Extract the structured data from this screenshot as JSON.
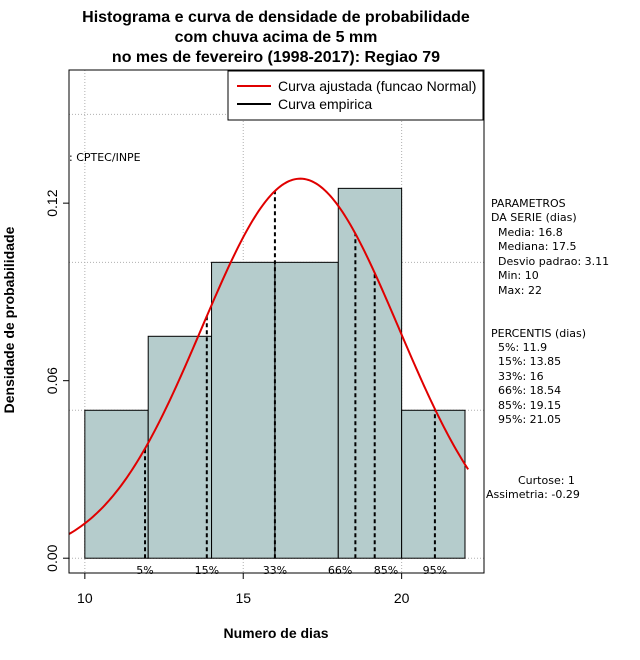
{
  "chart_data": {
    "type": "bar",
    "title_lines": [
      "Histograma e curva de densidade de probabilidade",
      "com chuva acima de 5 mm",
      "no mes de fevereiro (1998-2017): Regiao 79"
    ],
    "xlabel": "Numero de dias",
    "ylabel": "Densidade de probabilidade",
    "xlim": [
      9.5,
      22.6
    ],
    "ylim": [
      -0.005,
      0.165
    ],
    "x_ticks": [
      10,
      15,
      20
    ],
    "y_ticks": [
      0.0,
      0.06,
      0.12
    ],
    "y_tick_labels": [
      "0.00",
      "0.06",
      "0.12"
    ],
    "bins": [
      {
        "from": 10,
        "to": 12,
        "density": 0.05
      },
      {
        "from": 12,
        "to": 14,
        "density": 0.075
      },
      {
        "from": 14,
        "to": 16,
        "density": 0.1
      },
      {
        "from": 16,
        "to": 18,
        "density": 0.1
      },
      {
        "from": 18,
        "to": 20,
        "density": 0.125
      },
      {
        "from": 20,
        "to": 22,
        "density": 0.05
      }
    ],
    "normal_curve": {
      "mean": 16.8,
      "sd": 3.11
    },
    "percentile_lines": [
      {
        "label": "5%",
        "x": 11.9
      },
      {
        "label": "15%",
        "x": 13.85
      },
      {
        "label": "33%",
        "x": 16.0
      },
      {
        "label": "66%",
        "x": 18.54
      },
      {
        "label": "85%",
        "x": 19.15
      },
      {
        "label": "95%",
        "x": 21.05
      }
    ],
    "legend": {
      "position": "top-right",
      "items": [
        {
          "label": "Curva ajustada (funcao Normal)",
          "color": "#e00000"
        },
        {
          "label": "Curva empirica",
          "color": "#000000"
        }
      ]
    },
    "grid": true,
    "source_label": ": CPTEC/INPE",
    "colors": {
      "bar_fill": "#b5cccc",
      "curve": "#e00000",
      "grid": "#b0b0b0"
    }
  },
  "stats_panel": {
    "parametros_title": [
      "PARAMETROS",
      "DA SERIE (dias)"
    ],
    "parametros": [
      "Media: 16.8",
      "Mediana: 17.5",
      "Desvio padrao: 3.11",
      "Min: 10",
      "Max: 22"
    ],
    "percentis_title": "PERCENTIS (dias)",
    "percentis": [
      "5%: 11.9",
      "15%: 13.85",
      "33%: 16",
      "66%: 18.54",
      "85%: 19.15",
      "95%: 21.05"
    ],
    "curtose": "Curtose: 1",
    "assimetria": "Assimetria: -0.29"
  }
}
